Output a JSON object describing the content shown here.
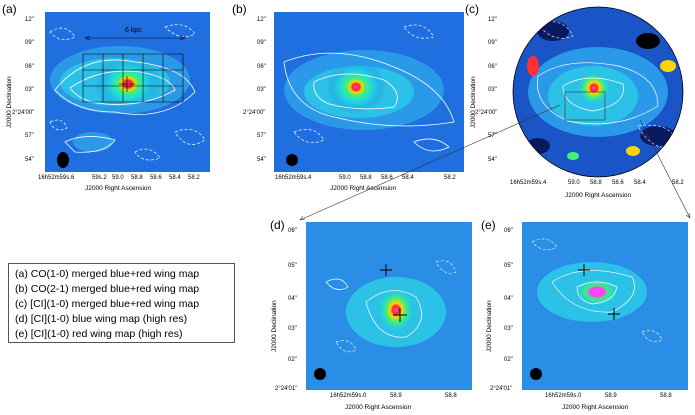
{
  "panel_labels": [
    "(a)",
    "(b)",
    "(c)",
    "(d)",
    "(e)"
  ],
  "scale_label": "6 kpc",
  "axis": {
    "x_label": "J2000 Right Ascension",
    "y_label": "J2000 Declination"
  },
  "ticks_top": {
    "y": [
      "12\"",
      "09\"",
      "06\"",
      "03\"",
      "2°24'00\"",
      "57\"",
      "54\""
    ],
    "x": [
      "16h52m59s.6",
      "59s.2",
      "59.0",
      "58.8",
      "58.6",
      "58.4",
      "58.2"
    ],
    "x_b": [
      "16h52m59s.4",
      "59.0",
      "58.8",
      "58.6",
      "58.4",
      "58.2"
    ],
    "x_c": [
      "16h52m59s.4",
      "59.0",
      "58.8",
      "58.6",
      "58.4",
      "58.2"
    ]
  },
  "ticks_bottom": {
    "y": [
      "06\"",
      "05\"",
      "04\"",
      "03\"",
      "02\"",
      "2°24'01\""
    ],
    "x": [
      "16h52m59s.0",
      "58.9",
      "58.8"
    ]
  },
  "legend": [
    "(a)  CO(1-0) merged blue+red wing map",
    "(b)  CO(2-1) merged blue+red wing map",
    "(c)  [CI](1-0) merged blue+red wing map",
    "(d)  [CI](1-0) blue wing map (high res)",
    "(e)  [CI](1-0) red wing map (high res)"
  ]
}
